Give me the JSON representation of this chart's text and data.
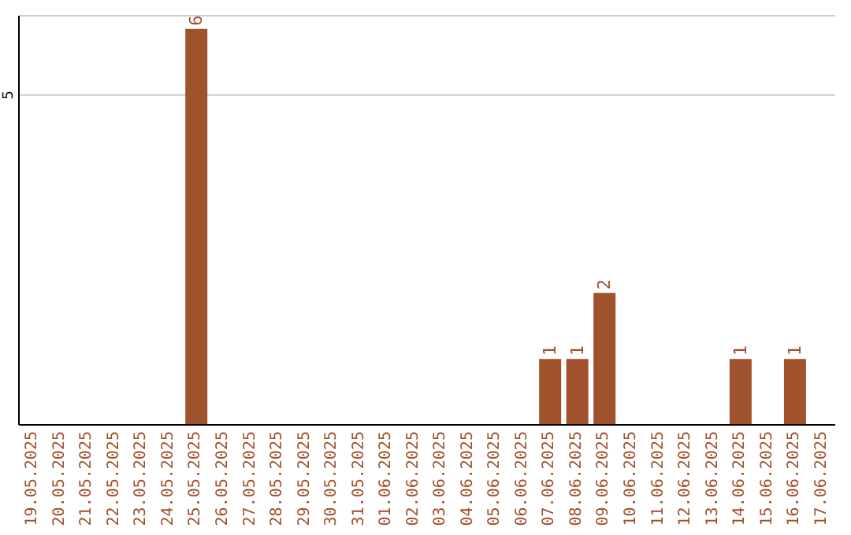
{
  "chart_data": {
    "type": "bar",
    "categories": [
      "19.05.2025",
      "20.05.2025",
      "21.05.2025",
      "22.05.2025",
      "23.05.2025",
      "24.05.2025",
      "25.05.2025",
      "26.05.2025",
      "27.05.2025",
      "28.05.2025",
      "29.05.2025",
      "30.05.2025",
      "31.05.2025",
      "01.06.2025",
      "02.06.2025",
      "03.06.2025",
      "04.06.2025",
      "05.06.2025",
      "06.06.2025",
      "07.06.2025",
      "08.06.2025",
      "09.06.2025",
      "10.06.2025",
      "11.06.2025",
      "12.06.2025",
      "13.06.2025",
      "14.06.2025",
      "15.06.2025",
      "16.06.2025",
      "17.06.2025"
    ],
    "values": [
      0,
      0,
      0,
      0,
      0,
      0,
      6,
      0,
      0,
      0,
      0,
      0,
      0,
      0,
      0,
      0,
      0,
      0,
      0,
      1,
      1,
      2,
      0,
      0,
      0,
      0,
      1,
      0,
      1,
      0
    ],
    "value_labels": [
      null,
      null,
      null,
      null,
      null,
      null,
      "6",
      null,
      null,
      null,
      null,
      null,
      null,
      null,
      null,
      null,
      null,
      null,
      null,
      "1",
      "1",
      "2",
      null,
      null,
      null,
      null,
      "1",
      null,
      "1",
      null
    ],
    "color": "#a0522d",
    "ylim": [
      0,
      6.2
    ],
    "yticks": [
      5
    ],
    "grid": "y",
    "legend": false
  }
}
